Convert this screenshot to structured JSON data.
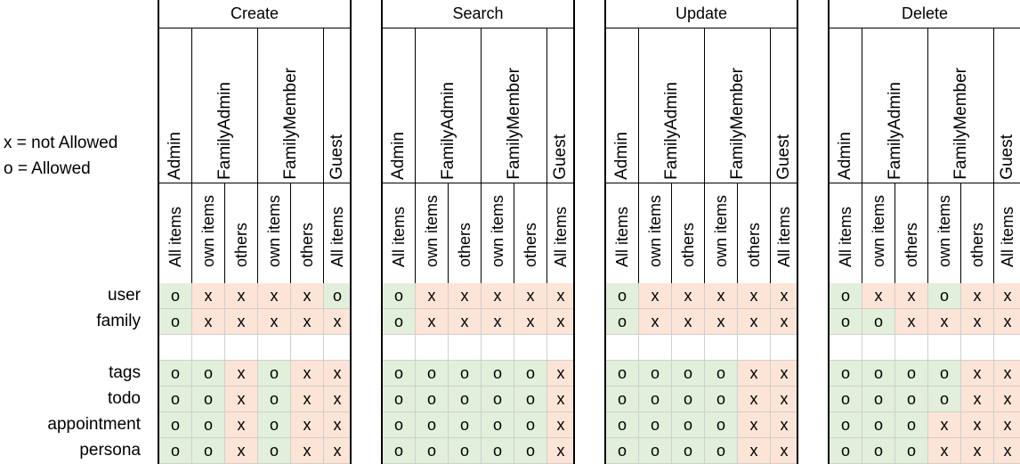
{
  "legend": [
    "x = not Allowed",
    "o = Allowed"
  ],
  "groups": [
    "Create",
    "Search",
    "Update",
    "Delete"
  ],
  "roles": [
    "Admin",
    "FamilyAdmin",
    "FamilyMember",
    "Guest"
  ],
  "scopes": [
    "All items",
    "own items",
    "others",
    "own items",
    "others",
    "All items"
  ],
  "rows": [
    {
      "label": "user",
      "values": [
        [
          "o",
          "x",
          "x",
          "x",
          "x",
          "o"
        ],
        [
          "o",
          "x",
          "x",
          "x",
          "x",
          "x"
        ],
        [
          "o",
          "x",
          "x",
          "x",
          "x",
          "x"
        ],
        [
          "o",
          "x",
          "x",
          "o",
          "x",
          "x"
        ]
      ]
    },
    {
      "label": "family",
      "values": [
        [
          "o",
          "x",
          "x",
          "x",
          "x",
          "x"
        ],
        [
          "o",
          "x",
          "x",
          "x",
          "x",
          "x"
        ],
        [
          "o",
          "x",
          "x",
          "x",
          "x",
          "x"
        ],
        [
          "o",
          "o",
          "x",
          "x",
          "x",
          "x"
        ]
      ]
    },
    {
      "label": "",
      "values": [
        [
          "",
          "",
          "",
          "",
          "",
          ""
        ],
        [
          "",
          "",
          "",
          "",
          "",
          ""
        ],
        [
          "",
          "",
          "",
          "",
          "",
          ""
        ],
        [
          "",
          "",
          "",
          "",
          "",
          ""
        ]
      ]
    },
    {
      "label": "tags",
      "values": [
        [
          "o",
          "o",
          "x",
          "o",
          "x",
          "x"
        ],
        [
          "o",
          "o",
          "o",
          "o",
          "o",
          "x"
        ],
        [
          "o",
          "o",
          "o",
          "o",
          "x",
          "x"
        ],
        [
          "o",
          "o",
          "o",
          "o",
          "x",
          "x"
        ]
      ]
    },
    {
      "label": "todo",
      "values": [
        [
          "o",
          "o",
          "x",
          "o",
          "x",
          "x"
        ],
        [
          "o",
          "o",
          "o",
          "o",
          "o",
          "x"
        ],
        [
          "o",
          "o",
          "o",
          "o",
          "x",
          "x"
        ],
        [
          "o",
          "o",
          "o",
          "o",
          "x",
          "x"
        ]
      ]
    },
    {
      "label": "appointment",
      "values": [
        [
          "o",
          "o",
          "x",
          "o",
          "x",
          "x"
        ],
        [
          "o",
          "o",
          "o",
          "o",
          "o",
          "x"
        ],
        [
          "o",
          "o",
          "o",
          "o",
          "x",
          "x"
        ],
        [
          "o",
          "o",
          "o",
          "x",
          "x",
          "x"
        ]
      ]
    },
    {
      "label": "persona",
      "values": [
        [
          "o",
          "o",
          "x",
          "o",
          "x",
          "x"
        ],
        [
          "o",
          "o",
          "o",
          "o",
          "o",
          "x"
        ],
        [
          "o",
          "o",
          "o",
          "o",
          "x",
          "x"
        ],
        [
          "o",
          "o",
          "o",
          "x",
          "x",
          "x"
        ]
      ]
    }
  ],
  "colors": {
    "allowed": "#e2efda",
    "not_allowed": "#fce4d6"
  }
}
